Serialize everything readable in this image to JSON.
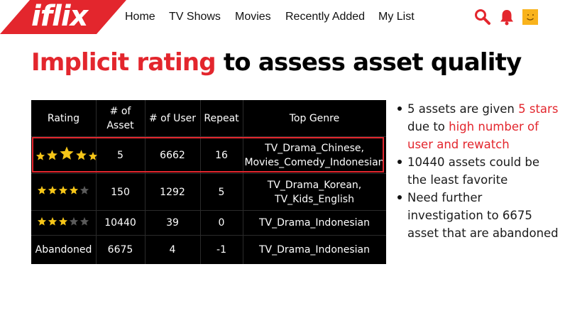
{
  "brand": {
    "logo_text": "iflix",
    "accent_color": "#e3262d",
    "avatar_color": "#f9b31c"
  },
  "nav": {
    "items": [
      "Home",
      "TV Shows",
      "Movies",
      "Recently Added",
      "My List"
    ]
  },
  "header_icons": [
    "search-icon",
    "bell-icon",
    "avatar-icon"
  ],
  "title": {
    "highlight": "Implicit rating",
    "rest": "to assess asset quality"
  },
  "table": {
    "headers": [
      "Rating",
      "# of Asset",
      "# of User",
      "Repeat",
      "Top Genre"
    ],
    "rows": [
      {
        "rating_stars": 5,
        "rating_label": "",
        "assets": "5",
        "users": "6662",
        "repeat": "16",
        "genre": [
          "TV_Drama_Chinese,",
          "Movies_Comedy_Indonesian"
        ],
        "highlighted": true
      },
      {
        "rating_stars": 4,
        "rating_label": "",
        "assets": "150",
        "users": "1292",
        "repeat": "5",
        "genre": [
          "TV_Drama_Korean,",
          "TV_Kids_English"
        ],
        "highlighted": false
      },
      {
        "rating_stars": 3,
        "rating_label": "",
        "assets": "10440",
        "users": "39",
        "repeat": "0",
        "genre": [
          "TV_Drama_Indonesian"
        ],
        "highlighted": false
      },
      {
        "rating_stars": 0,
        "rating_label": "Abandoned",
        "assets": "6675",
        "users": "4",
        "repeat": "-1",
        "genre": [
          "TV_Drama_Indonesian"
        ],
        "highlighted": false
      }
    ]
  },
  "bullets": {
    "b1_pre": "5 assets are given ",
    "b1_red1": "5 stars",
    "b1_mid": " due  to ",
    "b1_red2": "high number of user and rewatch",
    "b2": "10440 assets could be the least favorite",
    "b3": "Need further investigation to 6675 asset that are abandoned"
  }
}
